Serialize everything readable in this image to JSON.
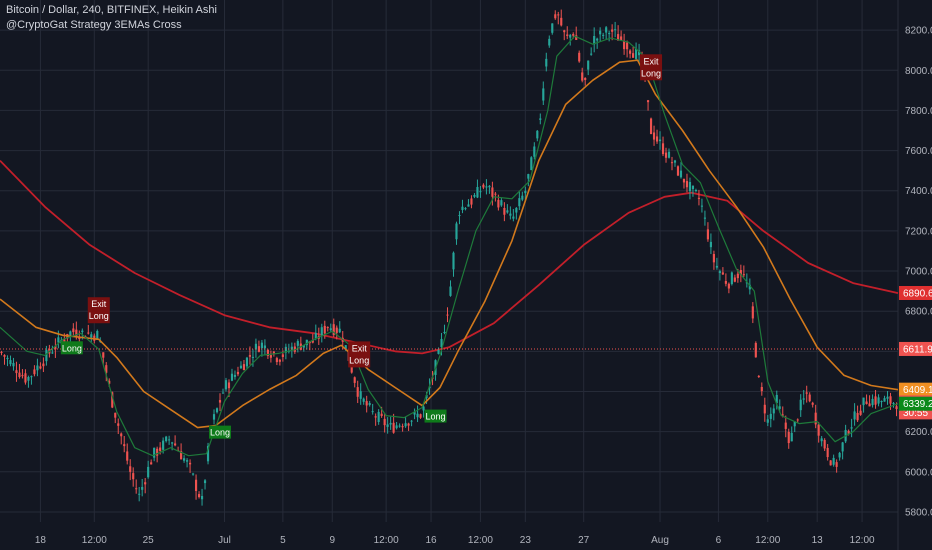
{
  "header": {
    "title": "Bitcoin / Dollar, 240, BITFINEX, Heikin Ashi",
    "subtitle": "@CryptoGat Strategy 3EMAs Cross"
  },
  "colors": {
    "background": "#131722",
    "grid": "#262b38",
    "bull": "#26a69a",
    "bear": "#ef5350",
    "ema_fast": "#1e7a3a",
    "ema_mid": "#d2791c",
    "ema_slow": "#c21f2a",
    "entry": "#0e7a1a",
    "exit": "#7a1010",
    "exit_long": "#b22222"
  },
  "chart_data": {
    "type": "candlestick",
    "x_range": [
      0,
      100
    ],
    "ylim": [
      5750,
      8350
    ],
    "y_ticks": [
      "5800.0",
      "6000.0",
      "6200.0",
      "6400.0",
      "6600.0",
      "6800.0",
      "7000.0",
      "7200.0",
      "7400.0",
      "7600.0",
      "7800.0",
      "8000.0",
      "8200.0"
    ],
    "x_ticks": [
      {
        "x": 4.5,
        "label": "18"
      },
      {
        "x": 10.5,
        "label": "12:00"
      },
      {
        "x": 16.5,
        "label": "25"
      },
      {
        "x": 25,
        "label": "Jul"
      },
      {
        "x": 31.5,
        "label": "5"
      },
      {
        "x": 37,
        "label": "9"
      },
      {
        "x": 43,
        "label": "12:00"
      },
      {
        "x": 48,
        "label": "16"
      },
      {
        "x": 53.5,
        "label": "12:00"
      },
      {
        "x": 58.5,
        "label": "23"
      },
      {
        "x": 65,
        "label": "27"
      },
      {
        "x": 73.5,
        "label": "Aug"
      },
      {
        "x": 80,
        "label": "6"
      },
      {
        "x": 85.5,
        "label": "12:00"
      },
      {
        "x": 91,
        "label": "13"
      },
      {
        "x": 96,
        "label": "12:00"
      }
    ],
    "price_lines": [
      {
        "name": "EMA slow",
        "value": 6890.6,
        "label": "6890.6",
        "color": "#e03030"
      },
      {
        "name": "Last",
        "value": 6611.9,
        "label": "6611.9",
        "color": "#ef5350"
      },
      {
        "name": "EMA mid",
        "value": 6409.1,
        "label": "6409.1",
        "color": "#f08f22"
      },
      {
        "name": "Close",
        "value": 6346.0,
        "label": "6346.0",
        "color": "#ef5350"
      },
      {
        "name": "Countdown",
        "value": 6296.0,
        "label": "30:55",
        "color": "#ef5350"
      },
      {
        "name": "EMA fast",
        "value": 6339.2,
        "label": "6339.2",
        "color": "#0b8a1a"
      }
    ],
    "keypoints": [
      [
        0,
        6600
      ],
      [
        3,
        6460
      ],
      [
        6,
        6620
      ],
      [
        8,
        6700
      ],
      [
        11,
        6680
      ],
      [
        12.5,
        6350
      ],
      [
        14.5,
        6000
      ],
      [
        15.5,
        5880
      ],
      [
        17,
        6080
      ],
      [
        19,
        6170
      ],
      [
        21,
        6030
      ],
      [
        22.5,
        5850
      ],
      [
        23.5,
        6220
      ],
      [
        25,
        6420
      ],
      [
        27.5,
        6560
      ],
      [
        29,
        6640
      ],
      [
        31,
        6570
      ],
      [
        33,
        6630
      ],
      [
        35,
        6650
      ],
      [
        36.5,
        6730
      ],
      [
        38,
        6700
      ],
      [
        40,
        6380
      ],
      [
        41.5,
        6290
      ],
      [
        43.5,
        6220
      ],
      [
        45,
        6250
      ],
      [
        47,
        6290
      ],
      [
        49,
        6600
      ],
      [
        50,
        6850
      ],
      [
        51,
        7300
      ],
      [
        52.5,
        7350
      ],
      [
        54,
        7430
      ],
      [
        55.5,
        7350
      ],
      [
        57,
        7250
      ],
      [
        58.5,
        7400
      ],
      [
        60,
        7700
      ],
      [
        61,
        8150
      ],
      [
        62,
        8300
      ],
      [
        63,
        8150
      ],
      [
        64,
        8200
      ],
      [
        65,
        7900
      ],
      [
        66,
        8150
      ],
      [
        68,
        8200
      ],
      [
        70,
        8120
      ],
      [
        71.5,
        8050
      ],
      [
        72.5,
        7700
      ],
      [
        74,
        7600
      ],
      [
        75.5,
        7500
      ],
      [
        77,
        7400
      ],
      [
        78,
        7350
      ],
      [
        79.5,
        7050
      ],
      [
        81,
        6940
      ],
      [
        82.5,
        7000
      ],
      [
        83.5,
        6900
      ],
      [
        84.5,
        6450
      ],
      [
        85.5,
        6250
      ],
      [
        86.5,
        6350
      ],
      [
        88,
        6150
      ],
      [
        89,
        6310
      ],
      [
        90,
        6400
      ],
      [
        91.5,
        6160
      ],
      [
        93,
        6020
      ],
      [
        94.5,
        6220
      ],
      [
        96.5,
        6360
      ],
      [
        100,
        6346
      ]
    ],
    "series": [
      {
        "name": "EMA slow",
        "color": "#c21f2a",
        "points": [
          [
            0,
            7550
          ],
          [
            5,
            7320
          ],
          [
            10,
            7130
          ],
          [
            15,
            6990
          ],
          [
            20,
            6880
          ],
          [
            25,
            6780
          ],
          [
            30,
            6720
          ],
          [
            35,
            6690
          ],
          [
            40,
            6640
          ],
          [
            44,
            6600
          ],
          [
            47,
            6590
          ],
          [
            50,
            6620
          ],
          [
            55,
            6740
          ],
          [
            60,
            6930
          ],
          [
            65,
            7130
          ],
          [
            70,
            7290
          ],
          [
            74,
            7370
          ],
          [
            77,
            7390
          ],
          [
            81,
            7350
          ],
          [
            85,
            7200
          ],
          [
            90,
            7040
          ],
          [
            95,
            6940
          ],
          [
            100,
            6890
          ]
        ]
      },
      {
        "name": "EMA mid",
        "color": "#d2791c",
        "points": [
          [
            0,
            6860
          ],
          [
            4,
            6720
          ],
          [
            7,
            6680
          ],
          [
            11,
            6660
          ],
          [
            13,
            6570
          ],
          [
            16,
            6400
          ],
          [
            19,
            6310
          ],
          [
            22,
            6220
          ],
          [
            24,
            6230
          ],
          [
            27,
            6330
          ],
          [
            30,
            6410
          ],
          [
            33,
            6480
          ],
          [
            36,
            6590
          ],
          [
            38,
            6630
          ],
          [
            41,
            6510
          ],
          [
            44,
            6420
          ],
          [
            47,
            6330
          ],
          [
            49,
            6420
          ],
          [
            51,
            6600
          ],
          [
            54,
            6850
          ],
          [
            57,
            7150
          ],
          [
            60,
            7550
          ],
          [
            63,
            7830
          ],
          [
            66,
            7950
          ],
          [
            69,
            8040
          ],
          [
            71,
            8050
          ],
          [
            73,
            7880
          ],
          [
            76,
            7700
          ],
          [
            79,
            7500
          ],
          [
            82,
            7320
          ],
          [
            85,
            7120
          ],
          [
            88,
            6860
          ],
          [
            91,
            6620
          ],
          [
            94,
            6480
          ],
          [
            97,
            6430
          ],
          [
            100,
            6409
          ]
        ]
      },
      {
        "name": "EMA fast",
        "color": "#1e7a3a",
        "points": [
          [
            0,
            6720
          ],
          [
            3,
            6600
          ],
          [
            5,
            6580
          ],
          [
            7,
            6660
          ],
          [
            9,
            6690
          ],
          [
            11,
            6610
          ],
          [
            13,
            6300
          ],
          [
            15,
            6120
          ],
          [
            17,
            6080
          ],
          [
            19,
            6120
          ],
          [
            21,
            6080
          ],
          [
            23,
            6090
          ],
          [
            25,
            6350
          ],
          [
            27,
            6490
          ],
          [
            29,
            6580
          ],
          [
            31,
            6590
          ],
          [
            33,
            6610
          ],
          [
            35,
            6660
          ],
          [
            37,
            6700
          ],
          [
            39,
            6630
          ],
          [
            41,
            6410
          ],
          [
            43,
            6280
          ],
          [
            45,
            6270
          ],
          [
            47,
            6320
          ],
          [
            49,
            6580
          ],
          [
            51,
            6900
          ],
          [
            53,
            7200
          ],
          [
            55,
            7370
          ],
          [
            57,
            7360
          ],
          [
            59,
            7450
          ],
          [
            61,
            7800
          ],
          [
            62,
            8070
          ],
          [
            64,
            8170
          ],
          [
            66,
            8130
          ],
          [
            68,
            8160
          ],
          [
            70,
            8140
          ],
          [
            72,
            8060
          ],
          [
            74,
            7780
          ],
          [
            76,
            7530
          ],
          [
            78,
            7440
          ],
          [
            80,
            7220
          ],
          [
            82,
            7010
          ],
          [
            84,
            6900
          ],
          [
            85.5,
            6450
          ],
          [
            87,
            6280
          ],
          [
            89,
            6240
          ],
          [
            91,
            6250
          ],
          [
            93,
            6150
          ],
          [
            95,
            6200
          ],
          [
            97,
            6290
          ],
          [
            100,
            6339
          ]
        ]
      }
    ],
    "signals": [
      {
        "kind": "entry",
        "x": 8,
        "price": 6650,
        "label": "Long"
      },
      {
        "kind": "exit",
        "x": 11,
        "price": 6740,
        "lines": [
          "Exit",
          "Long"
        ]
      },
      {
        "kind": "entry",
        "x": 24.5,
        "price": 6230,
        "label": "Long"
      },
      {
        "kind": "exit",
        "x": 40,
        "price": 6520,
        "lines": [
          "Exit",
          "Long"
        ]
      },
      {
        "kind": "entry",
        "x": 48.5,
        "price": 6310,
        "label": "Long"
      },
      {
        "kind": "exit",
        "x": 72.5,
        "price": 7950,
        "lines": [
          "Exit",
          "Long"
        ]
      }
    ]
  }
}
